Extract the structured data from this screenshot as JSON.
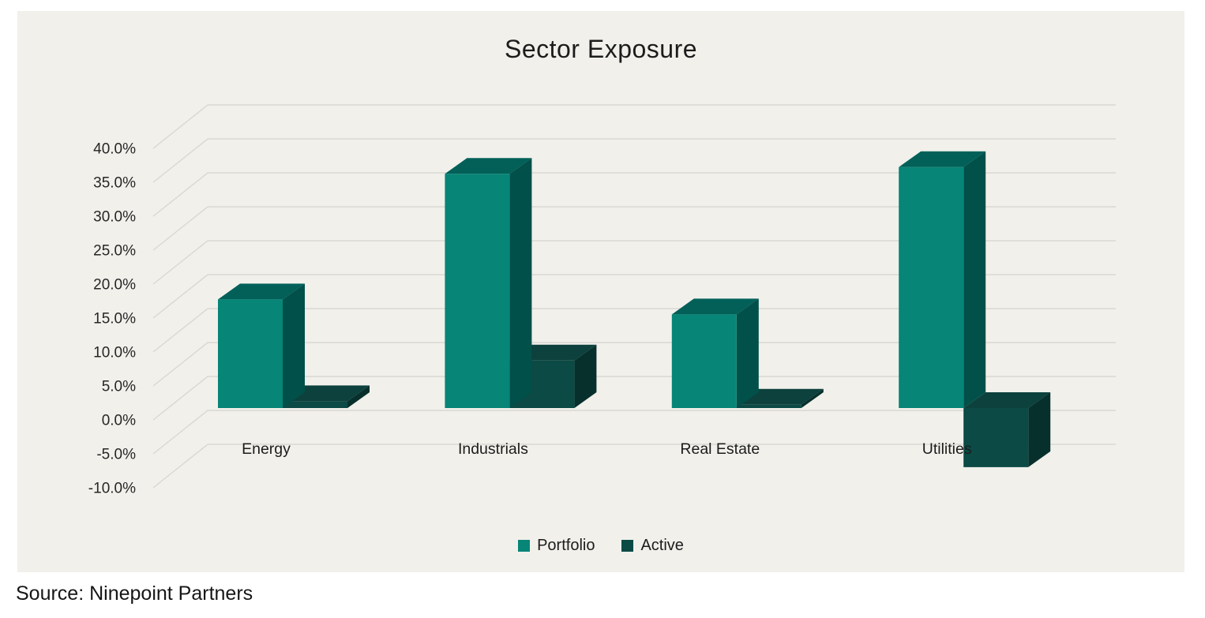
{
  "page": {
    "background": "#FFFFFF",
    "canvas_background": "#F1F0EB"
  },
  "chart": {
    "title": "Sector Exposure"
  },
  "chart_data": {
    "type": "bar",
    "variant": "3d-column",
    "title": "Sector Exposure",
    "categories": [
      "Energy",
      "Industrials",
      "Real Estate",
      "Utilities"
    ],
    "series": [
      {
        "name": "Portfolio",
        "values": [
          16.0,
          34.5,
          13.8,
          35.5
        ],
        "colors": {
          "front": "#078577",
          "top": "#026059",
          "side": "#015049"
        }
      },
      {
        "name": "Active",
        "values": [
          1.0,
          7.0,
          0.5,
          -8.7
        ],
        "colors": {
          "front": "#0B4A45",
          "top": "#0D413D",
          "side": "#07302C"
        }
      }
    ],
    "xlabel": "",
    "ylabel": "",
    "ylim": [
      -10,
      40
    ],
    "grid": true,
    "gridline_color": "#D9D7D2",
    "legend_position": "bottom",
    "y_axis": {
      "ticks": [
        {
          "value": 40,
          "label": "40.0%"
        },
        {
          "value": 35,
          "label": "35.0%"
        },
        {
          "value": 30,
          "label": "30.0%"
        },
        {
          "value": 25,
          "label": "25.0%"
        },
        {
          "value": 20,
          "label": "20.0%"
        },
        {
          "value": 15,
          "label": "15.0%"
        },
        {
          "value": 10,
          "label": "10.0%"
        },
        {
          "value": 5,
          "label": "5.0%"
        },
        {
          "value": 0,
          "label": "0.0%"
        },
        {
          "value": -5,
          "label": "-5.0%"
        },
        {
          "value": -10,
          "label": "-10.0%"
        }
      ]
    }
  },
  "legend": {
    "items": [
      {
        "label": "Portfolio",
        "color": "#078577"
      },
      {
        "label": "Active",
        "color": "#0B4A45"
      }
    ]
  },
  "source": {
    "text": "Source: Ninepoint Partners"
  }
}
